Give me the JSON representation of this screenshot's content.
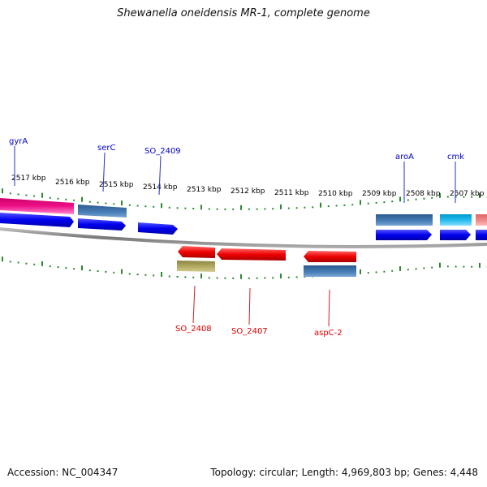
{
  "title": "Shewanella oneidensis MR-1, complete genome",
  "footer": {
    "accession": "Accession: NC_004347",
    "summary": "Topology: circular; Length: 4,969,803 bp; Genes: 4,448"
  },
  "ruler": {
    "labels": [
      "2517 kbp",
      "2516 kbp",
      "2515 kbp",
      "2514 kbp",
      "2513 kbp",
      "2512 kbp",
      "2511 kbp",
      "2510 kbp",
      "2509 kbp",
      "2508 kbp",
      "2507 kbp"
    ]
  },
  "colors": {
    "forward_label": "#0000cc",
    "reverse_label": "#dd0000",
    "tick": "#2a8a2a",
    "backbone": "#888888",
    "cds_forward": "#0000ee",
    "cds_reverse": "#ee0000",
    "feature_steel": "#3a6ea5",
    "feature_pink": "#ee1188",
    "feature_cyan": "#22bbee",
    "feature_olive": "#b0a860",
    "feature_salmon": "#ee8888"
  },
  "genes_forward": [
    {
      "name": "gyrA"
    },
    {
      "name": "serC"
    },
    {
      "name": "SO_2409"
    },
    {
      "name": "aroA"
    },
    {
      "name": "cmk"
    }
  ],
  "genes_reverse": [
    {
      "name": "SO_2408"
    },
    {
      "name": "SO_2407"
    },
    {
      "name": "aspC-2"
    }
  ]
}
